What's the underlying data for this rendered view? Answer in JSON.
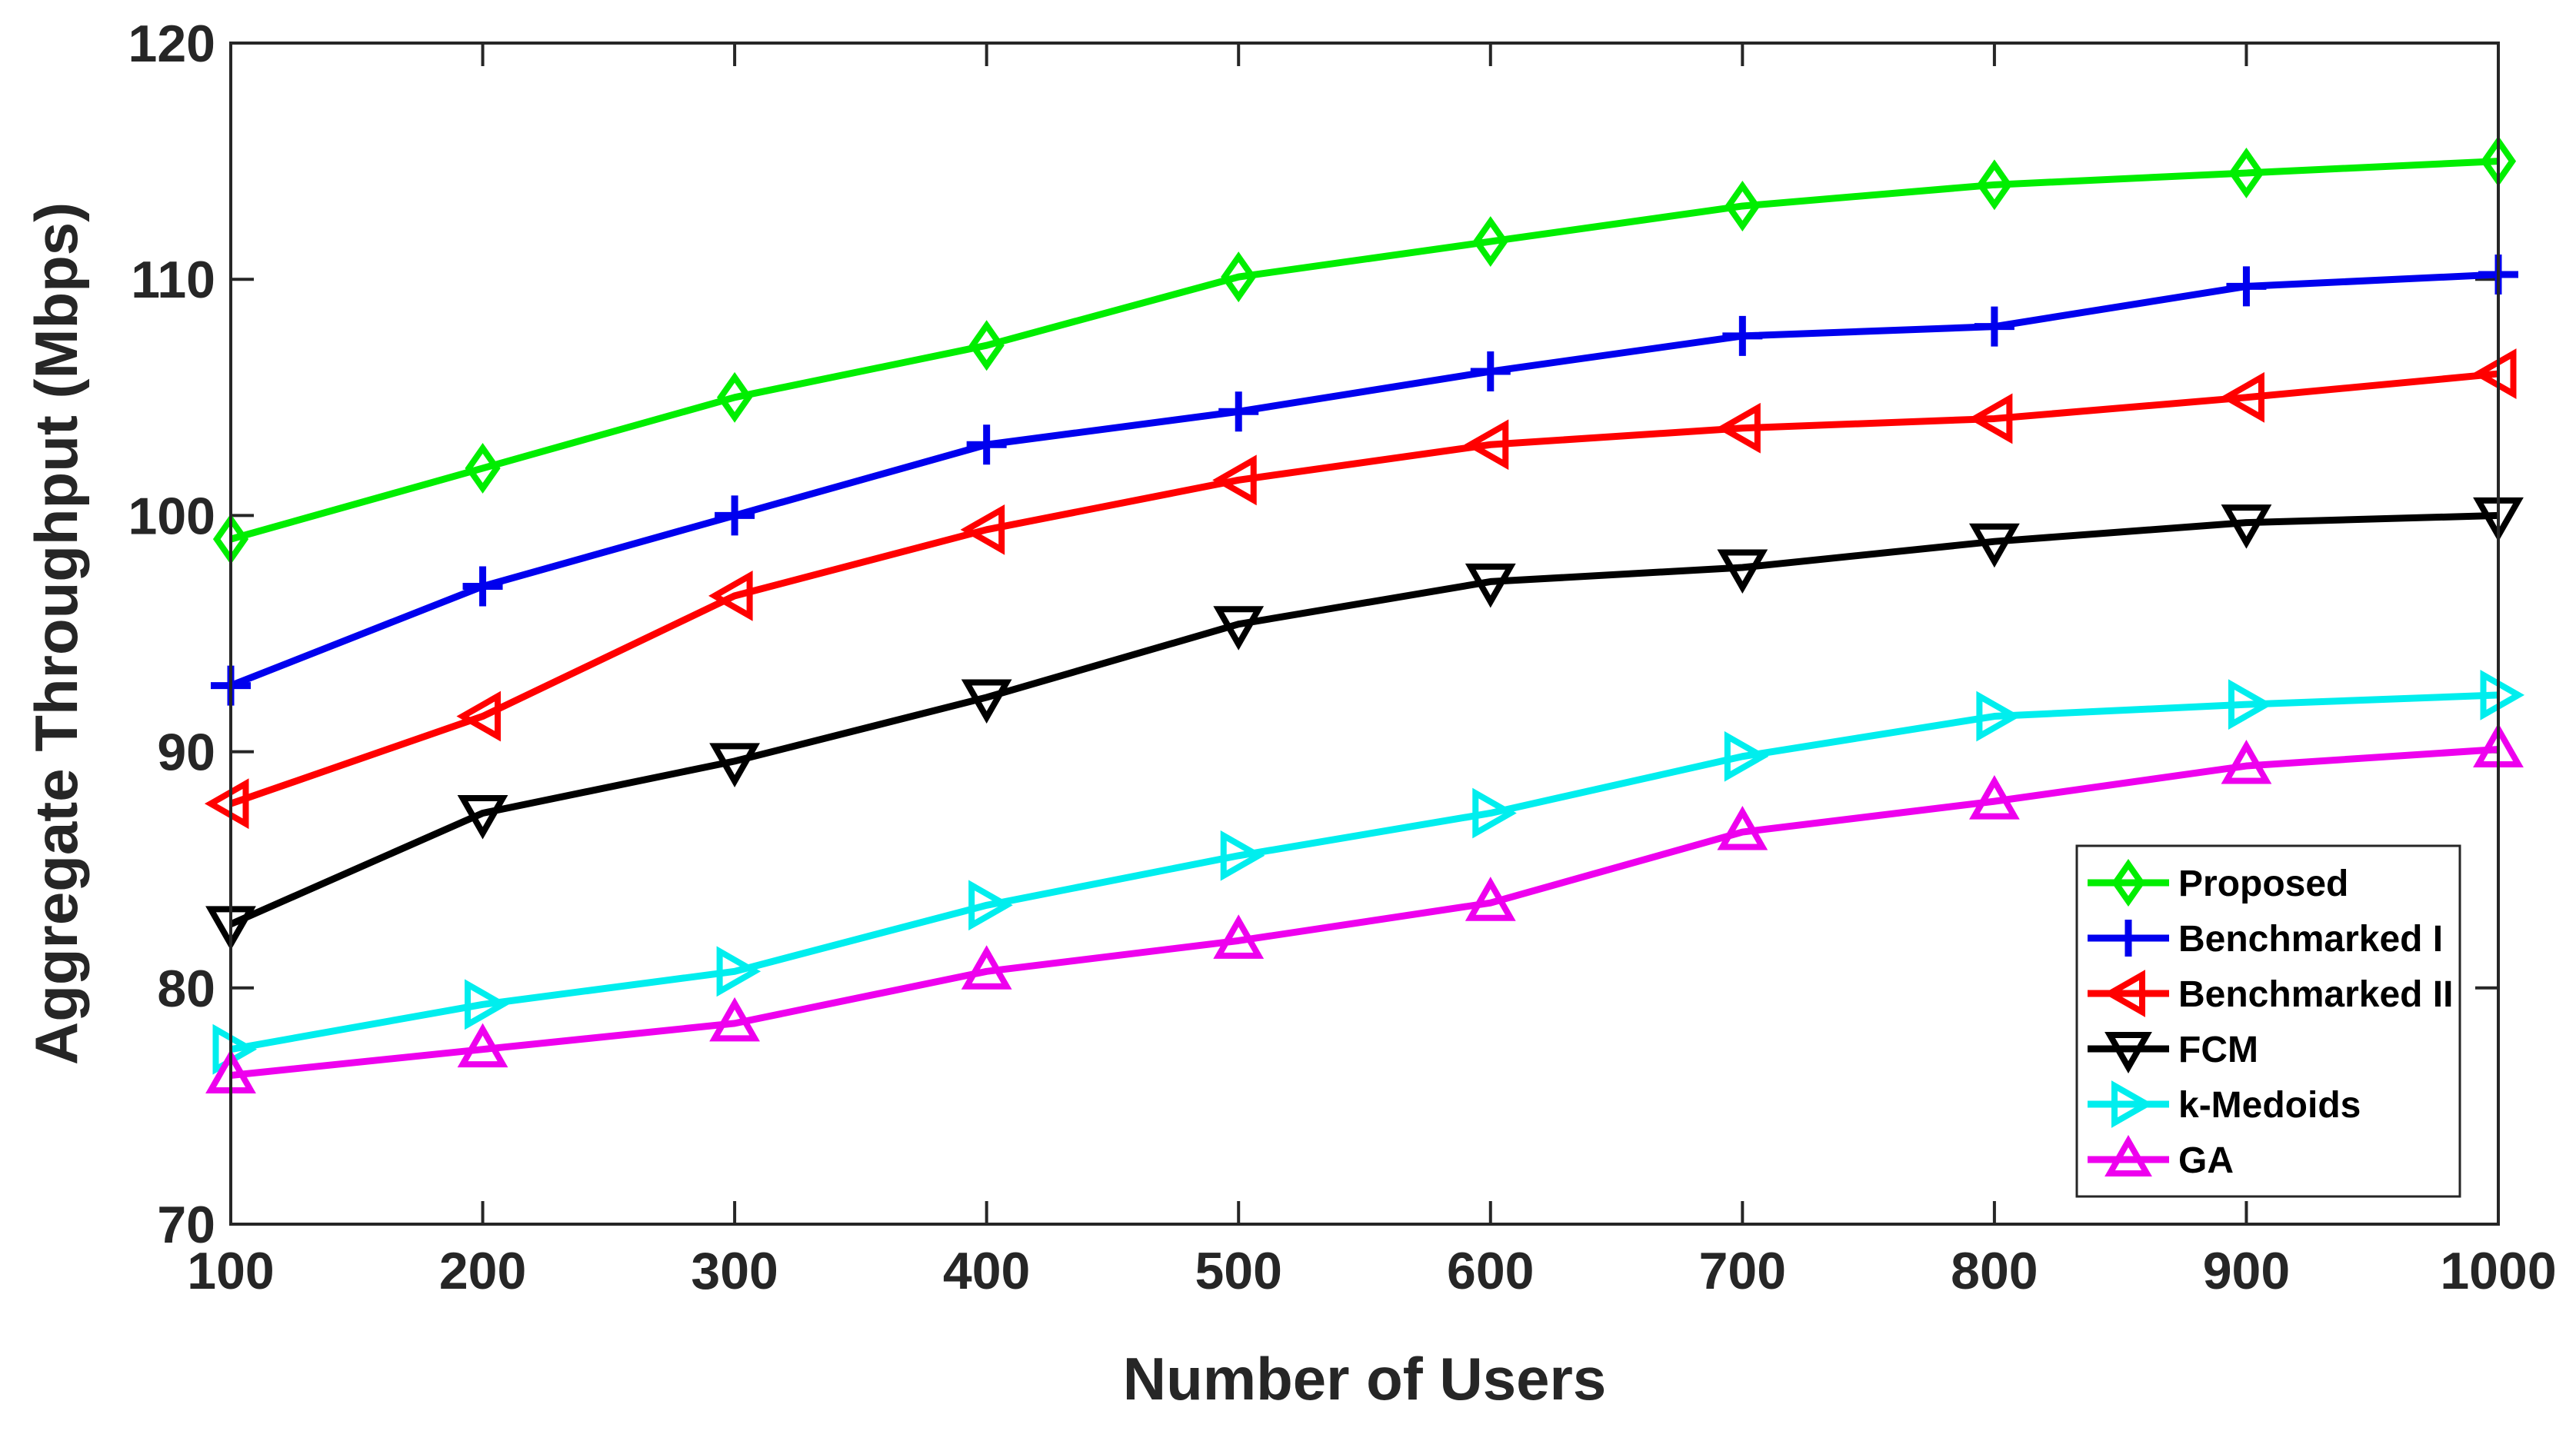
{
  "chart_data": {
    "type": "line",
    "title": "",
    "xlabel": "Number of Users",
    "ylabel": "Aggregate Throughput (Mbps)",
    "x": [
      100,
      200,
      300,
      400,
      500,
      600,
      700,
      800,
      900,
      1000
    ],
    "xlim": [
      100,
      1000
    ],
    "ylim": [
      70,
      120
    ],
    "xticks": [
      "100",
      "200",
      "300",
      "400",
      "500",
      "600",
      "700",
      "800",
      "900",
      "1000"
    ],
    "yticks": [
      "70",
      "80",
      "90",
      "100",
      "110",
      "120"
    ],
    "grid": false,
    "legend_position": "bottom-right",
    "series": [
      {
        "name": "Proposed",
        "color": "#00ee00",
        "marker": "diamond",
        "values": [
          99.0,
          102.0,
          105.0,
          107.2,
          110.1,
          111.6,
          113.1,
          114.0,
          114.5,
          115.0
        ]
      },
      {
        "name": "Benchmarked I",
        "color": "#0000ee",
        "marker": "plus",
        "values": [
          92.8,
          97.0,
          100.0,
          103.0,
          104.4,
          106.1,
          107.6,
          108.0,
          109.7,
          110.2
        ]
      },
      {
        "name": "Benchmarked II",
        "color": "#ff0000",
        "marker": "triangle-left",
        "values": [
          87.8,
          91.5,
          96.6,
          99.4,
          101.5,
          103.0,
          103.7,
          104.1,
          105.0,
          106.0
        ]
      },
      {
        "name": "FCM",
        "color": "#000000",
        "marker": "triangle-down",
        "values": [
          82.7,
          87.4,
          89.6,
          92.3,
          95.4,
          97.2,
          97.8,
          98.9,
          99.7,
          100.0
        ]
      },
      {
        "name": "k-Medoids",
        "color": "#00eeee",
        "marker": "triangle-right",
        "values": [
          77.4,
          79.3,
          80.7,
          83.5,
          85.6,
          87.4,
          89.8,
          91.5,
          92.0,
          92.4
        ]
      },
      {
        "name": "GA",
        "color": "#ee00ee",
        "marker": "triangle-up",
        "values": [
          76.3,
          77.4,
          78.5,
          80.7,
          82.0,
          83.6,
          86.6,
          87.9,
          89.4,
          90.1
        ]
      }
    ]
  }
}
